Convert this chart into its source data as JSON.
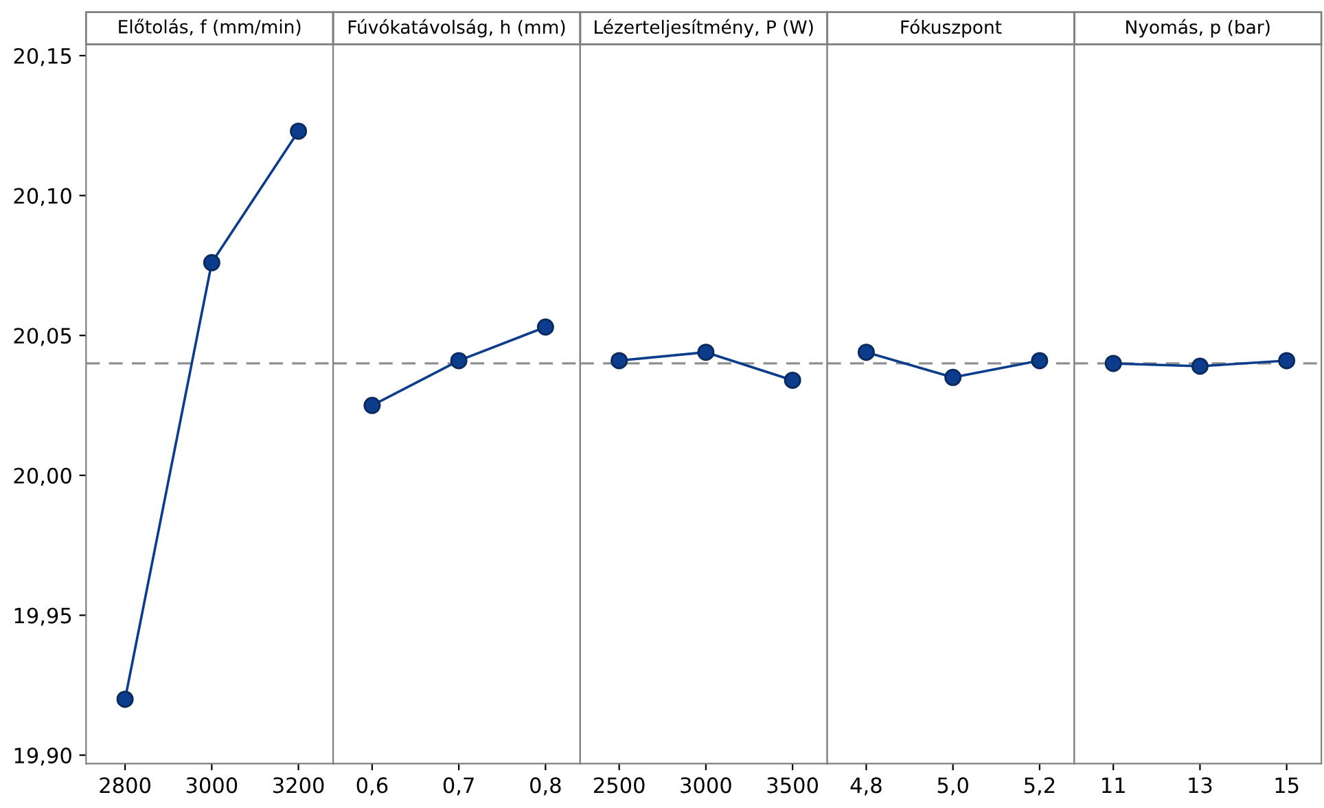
{
  "chart_data": [
    {
      "type": "line",
      "title": "Előtolás, f (mm/min)",
      "categories": [
        "2800",
        "3000",
        "3200"
      ],
      "series": [
        {
          "color": "#0b3d8c",
          "values": [
            19.92,
            20.076,
            20.123
          ]
        }
      ],
      "ylim": [
        19.897,
        20.154
      ],
      "yticks": [
        {
          "value": 19.9,
          "label": "19,90"
        },
        {
          "value": 19.95,
          "label": "19,95"
        },
        {
          "value": 20.0,
          "label": "20,00"
        },
        {
          "value": 20.05,
          "label": "20,05"
        },
        {
          "value": 20.1,
          "label": "20,10"
        },
        {
          "value": 20.15,
          "label": "20,15"
        }
      ],
      "ref_lines": [
        {
          "axis": "y",
          "value": 20.04,
          "color": "#909090",
          "line_style": "dashed"
        }
      ],
      "marker": "circle",
      "line_style": "solid",
      "grid": false,
      "legend": false
    },
    {
      "type": "line",
      "title": "Fúvókatávolság, h (mm)",
      "categories": [
        "0,6",
        "0,7",
        "0,8"
      ],
      "series": [
        {
          "color": "#0b3d8c",
          "values": [
            20.025,
            20.041,
            20.053
          ]
        }
      ],
      "ylim": [
        19.897,
        20.154
      ],
      "tick_labels": "x",
      "ref_lines": [
        {
          "axis": "y",
          "value": 20.04,
          "color": "#909090",
          "line_style": "dashed"
        }
      ],
      "marker": "circle",
      "line_style": "solid",
      "grid": false,
      "legend": false
    },
    {
      "type": "line",
      "title": "Lézerteljesítmény, P (W)",
      "categories": [
        "2500",
        "3000",
        "3500"
      ],
      "series": [
        {
          "color": "#0b3d8c",
          "values": [
            20.041,
            20.044,
            20.034
          ]
        }
      ],
      "ylim": [
        19.897,
        20.154
      ],
      "tick_labels": "x",
      "ref_lines": [
        {
          "axis": "y",
          "value": 20.04,
          "color": "#909090",
          "line_style": "dashed"
        }
      ],
      "marker": "circle",
      "line_style": "solid",
      "grid": false,
      "legend": false
    },
    {
      "type": "line",
      "title": "Fókuszpont",
      "categories": [
        "4,8",
        "5,0",
        "5,2"
      ],
      "series": [
        {
          "color": "#0b3d8c",
          "values": [
            20.044,
            20.035,
            20.041
          ]
        }
      ],
      "ylim": [
        19.897,
        20.154
      ],
      "tick_labels": "x",
      "ref_lines": [
        {
          "axis": "y",
          "value": 20.04,
          "color": "#909090",
          "line_style": "dashed"
        }
      ],
      "marker": "circle",
      "line_style": "solid",
      "grid": false,
      "legend": false
    },
    {
      "type": "line",
      "title": "Nyomás, p (bar)",
      "categories": [
        "11",
        "13",
        "15"
      ],
      "series": [
        {
          "color": "#0b3d8c",
          "values": [
            20.04,
            20.039,
            20.041
          ]
        }
      ],
      "ylim": [
        19.897,
        20.154
      ],
      "tick_labels": "x",
      "ref_lines": [
        {
          "axis": "y",
          "value": 20.04,
          "color": "#909090",
          "line_style": "dashed"
        }
      ],
      "marker": "circle",
      "line_style": "solid",
      "grid": false,
      "legend": false
    }
  ]
}
